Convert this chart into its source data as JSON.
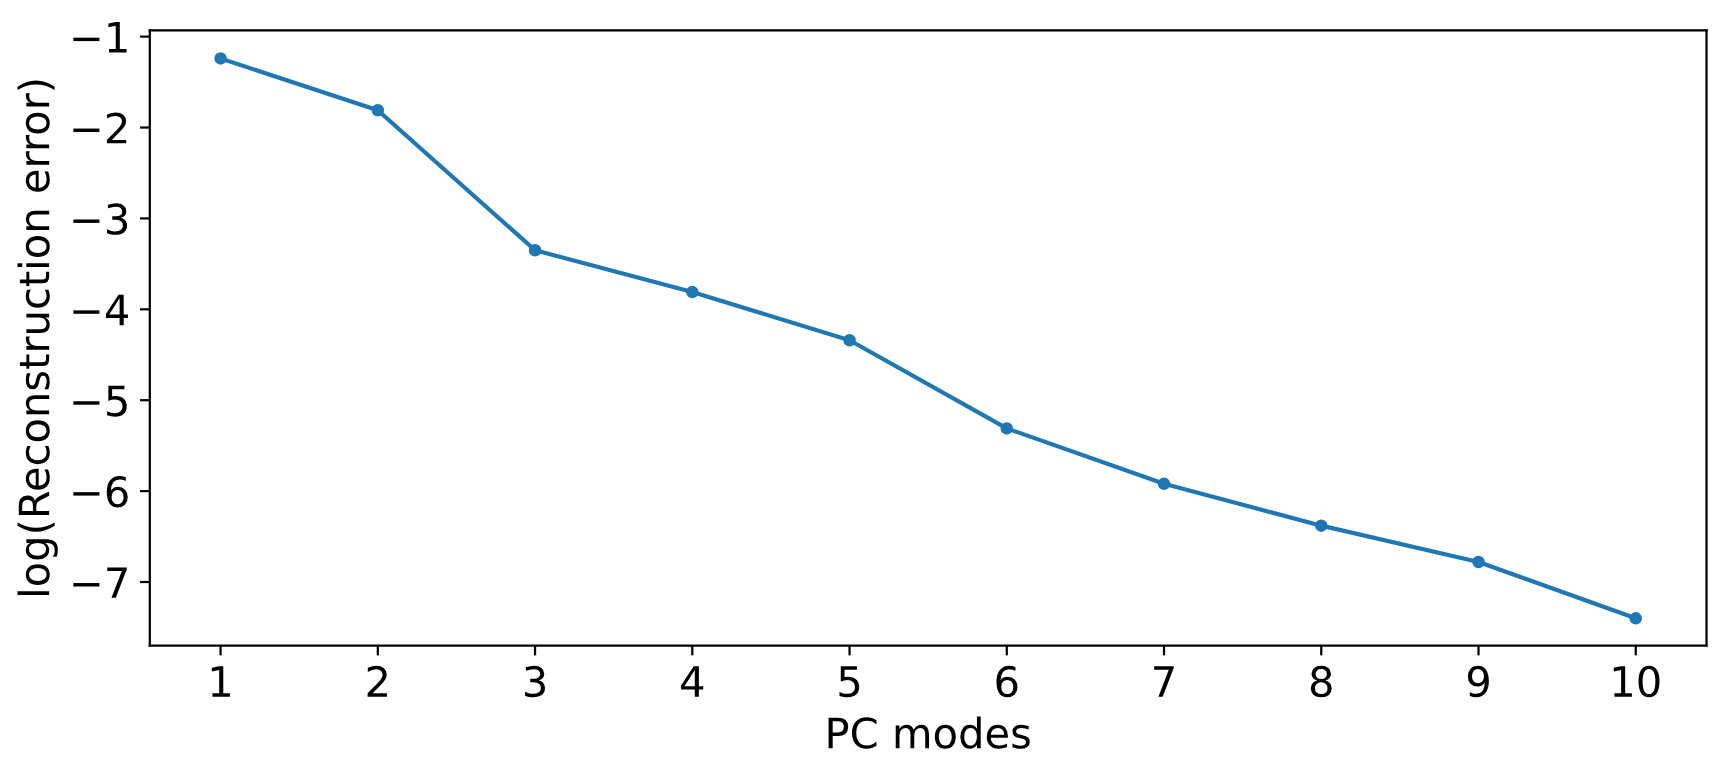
{
  "chart_data": {
    "type": "line",
    "xlabel": "PC modes",
    "ylabel": "log(Reconstruction error)",
    "x": [
      1,
      2,
      3,
      4,
      5,
      6,
      7,
      8,
      9,
      10
    ],
    "series": [
      {
        "color": "#1f77b4",
        "values": [
          -1.24,
          -1.81,
          -3.35,
          -3.81,
          -4.34,
          -5.31,
          -5.92,
          -6.38,
          -6.78,
          -7.4
        ]
      }
    ],
    "marker": "circle",
    "line_style": "solid",
    "grid": false,
    "legend": false,
    "xlim": [
      0.55,
      10.45
    ],
    "xticks": [
      1,
      2,
      3,
      4,
      5,
      6,
      7,
      8,
      9,
      10
    ],
    "ylim": [
      -7.7,
      -0.93
    ],
    "yticks": [
      {
        "value": -7,
        "label": "−7"
      },
      {
        "value": -6,
        "label": "−6"
      },
      {
        "value": -5,
        "label": "−5"
      },
      {
        "value": -4,
        "label": "−4"
      },
      {
        "value": -3,
        "label": "−3"
      },
      {
        "value": -2,
        "label": "−2"
      },
      {
        "value": -1,
        "label": "−1"
      }
    ]
  }
}
